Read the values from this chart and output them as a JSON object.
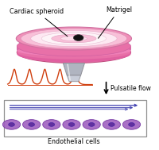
{
  "bg_color": "#ffffff",
  "title_cardiac": "Cardiac spheroid",
  "title_matrigel": "Matrigel",
  "title_pulsatile": "Pulsatile flow",
  "title_endothelial": "Endothelial cells",
  "dish_pink_deep": "#e8609a",
  "dish_pink_mid": "#f090b8",
  "dish_pink_light": "#f8c0d8",
  "dish_white_inner": "#fdeef4",
  "dish_center_pink": "#f4a8c0",
  "dish_very_light": "#fdf0f6",
  "spheroid_color": "#111111",
  "pulse_color": "#d04010",
  "arrow_color": "#000000",
  "flow_line_color": "#4040b0",
  "cell_color": "#a060c0",
  "cell_dark": "#7030a0",
  "cell_nucleus": "#6030a0",
  "box_edge_color": "#909090",
  "nozzle_light": "#c8ccd8",
  "nozzle_dark": "#909098",
  "nozzle_mid": "#b0b4c0"
}
